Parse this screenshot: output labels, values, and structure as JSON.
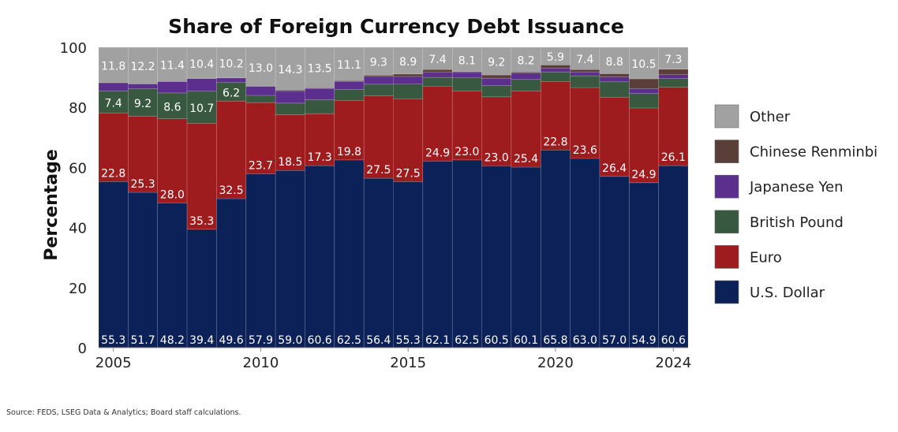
{
  "chart_data": {
    "type": "bar",
    "stacked": true,
    "title": "Share of Foreign Currency Debt Issuance",
    "xlabel": "",
    "ylabel": "Percentage",
    "ylim": [
      0,
      100
    ],
    "yticks": [
      "0",
      "20",
      "40",
      "60",
      "80",
      "100"
    ],
    "xticks": [
      "2005",
      "2010",
      "2015",
      "2020",
      "2024"
    ],
    "legend_position": "right",
    "categories": [
      "2005",
      "2006",
      "2007",
      "2008",
      "2009",
      "2010",
      "2011",
      "2012",
      "2013",
      "2014",
      "2015",
      "2016",
      "2017",
      "2018",
      "2019",
      "2020",
      "2021",
      "2022",
      "2023",
      "2024"
    ],
    "series": [
      {
        "name": "U.S. Dollar",
        "color": "#0d2159",
        "labeled": true,
        "values": [
          55.3,
          51.7,
          48.2,
          39.4,
          49.6,
          57.9,
          59.0,
          60.6,
          62.5,
          56.4,
          55.3,
          62.1,
          62.5,
          60.5,
          60.1,
          65.8,
          63.0,
          57.0,
          54.9,
          60.6
        ]
      },
      {
        "name": "Euro",
        "color": "#9e1c1e",
        "labeled": true,
        "values": [
          22.8,
          25.3,
          28.0,
          35.3,
          32.5,
          23.7,
          18.5,
          17.3,
          19.8,
          27.5,
          27.5,
          24.9,
          23.0,
          23.0,
          25.4,
          22.8,
          23.6,
          26.4,
          24.9,
          26.1
        ]
      },
      {
        "name": "British Pound",
        "color": "#385940",
        "labeled": [
          true,
          true,
          true,
          true,
          true,
          false,
          false,
          false,
          false,
          false,
          false,
          false,
          false,
          false,
          false,
          false,
          false,
          false,
          false,
          false
        ],
        "values": [
          7.4,
          9.2,
          8.6,
          10.7,
          6.2,
          2.4,
          3.9,
          4.7,
          3.7,
          3.8,
          5.0,
          3.0,
          4.4,
          3.8,
          3.8,
          3.2,
          3.9,
          5.1,
          4.8,
          2.9
        ]
      },
      {
        "name": "Japanese Yen",
        "color": "#5c2f8f",
        "labeled": false,
        "values": [
          2.7,
          1.6,
          3.8,
          4.2,
          1.5,
          3.0,
          3.9,
          3.7,
          2.6,
          2.6,
          2.5,
          1.7,
          1.7,
          2.4,
          2.1,
          1.3,
          1.3,
          1.6,
          1.6,
          1.3
        ]
      },
      {
        "name": "Chinese Renminbi",
        "color": "#5a3f39",
        "labeled": false,
        "values": [
          0,
          0,
          0,
          0,
          0,
          0,
          0.4,
          0.2,
          0.3,
          0.4,
          0.8,
          0.9,
          0.3,
          1.1,
          0.4,
          1.0,
          0.8,
          1.1,
          3.3,
          1.8
        ]
      },
      {
        "name": "Other",
        "color": "#a1a1a1",
        "labeled": true,
        "values": [
          11.8,
          12.2,
          11.4,
          10.4,
          10.2,
          13.0,
          14.3,
          13.5,
          11.1,
          9.3,
          8.9,
          7.4,
          8.1,
          9.2,
          8.2,
          5.9,
          7.4,
          8.8,
          10.5,
          7.3
        ]
      }
    ],
    "legend_order": [
      "Other",
      "Chinese Renminbi",
      "Japanese Yen",
      "British Pound",
      "Euro",
      "U.S. Dollar"
    ]
  },
  "source": "Source: FEDS, LSEG Data & Analytics; Board staff calculations."
}
